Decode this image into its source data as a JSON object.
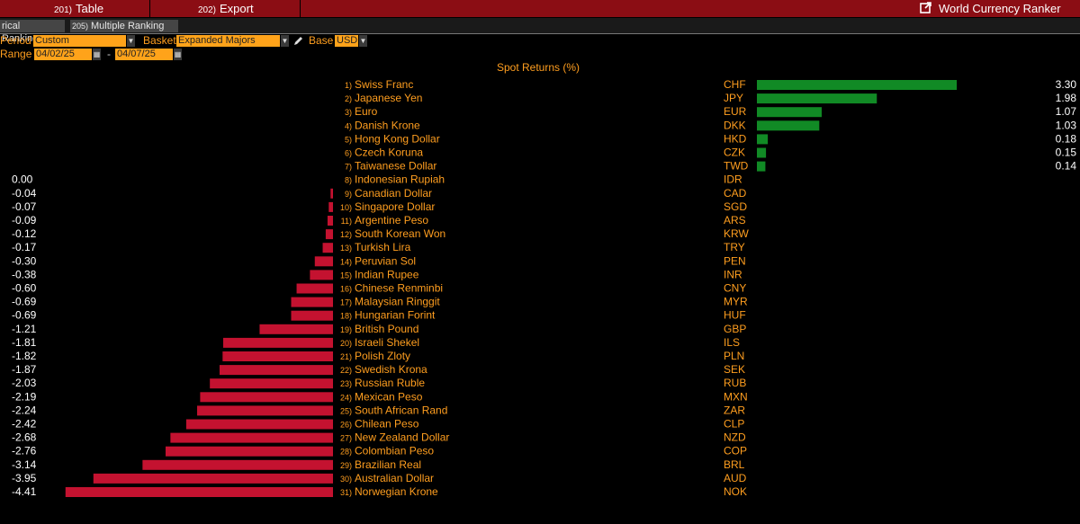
{
  "toolbar": {
    "table_num": "201)",
    "table_label": "Table",
    "export_num": "202)",
    "export_label": "Export",
    "app_title": "World Currency Ranker"
  },
  "tabs": {
    "historical": "rical Ranking",
    "multiple_num": "205)",
    "multiple": "Multiple Ranking"
  },
  "controls": {
    "period_label": "Period",
    "period_value": "Custom",
    "basket_label": "Basket",
    "basket_value": "Expanded Majors",
    "base_label": "Base",
    "base_value": "USD",
    "range_label": "Range",
    "range_start": "04/02/25",
    "range_dash": "-",
    "range_end": "04/07/25"
  },
  "colors": {
    "positive": "#118a25",
    "negative": "#c41230",
    "accent": "#ff9e1f",
    "header": "#8b0d14"
  },
  "icons": {
    "launch": "external-link-icon",
    "edit": "pencil-icon",
    "calendar": "calendar-icon",
    "dropdown": "dropdown-arrow-icon"
  },
  "chart_data": {
    "type": "bar",
    "title": "Spot Returns (%)",
    "rows": [
      {
        "rank": "1)",
        "name": "Swiss Franc",
        "code": "CHF",
        "value": 3.3,
        "label": "3.30"
      },
      {
        "rank": "2)",
        "name": "Japanese Yen",
        "code": "JPY",
        "value": 1.98,
        "label": "1.98"
      },
      {
        "rank": "3)",
        "name": "Euro",
        "code": "EUR",
        "value": 1.07,
        "label": "1.07"
      },
      {
        "rank": "4)",
        "name": "Danish Krone",
        "code": "DKK",
        "value": 1.03,
        "label": "1.03"
      },
      {
        "rank": "5)",
        "name": "Hong Kong Dollar",
        "code": "HKD",
        "value": 0.18,
        "label": "0.18"
      },
      {
        "rank": "6)",
        "name": "Czech Koruna",
        "code": "CZK",
        "value": 0.15,
        "label": "0.15"
      },
      {
        "rank": "7)",
        "name": "Taiwanese Dollar",
        "code": "TWD",
        "value": 0.14,
        "label": "0.14"
      },
      {
        "rank": "8)",
        "name": "Indonesian Rupiah",
        "code": "IDR",
        "value": 0.0,
        "label": "0.00"
      },
      {
        "rank": "9)",
        "name": "Canadian Dollar",
        "code": "CAD",
        "value": -0.04,
        "label": "-0.04"
      },
      {
        "rank": "10)",
        "name": "Singapore Dollar",
        "code": "SGD",
        "value": -0.07,
        "label": "-0.07"
      },
      {
        "rank": "11)",
        "name": "Argentine Peso",
        "code": "ARS",
        "value": -0.09,
        "label": "-0.09"
      },
      {
        "rank": "12)",
        "name": "South Korean Won",
        "code": "KRW",
        "value": -0.12,
        "label": "-0.12"
      },
      {
        "rank": "13)",
        "name": "Turkish Lira",
        "code": "TRY",
        "value": -0.17,
        "label": "-0.17"
      },
      {
        "rank": "14)",
        "name": "Peruvian Sol",
        "code": "PEN",
        "value": -0.3,
        "label": "-0.30"
      },
      {
        "rank": "15)",
        "name": "Indian Rupee",
        "code": "INR",
        "value": -0.38,
        "label": "-0.38"
      },
      {
        "rank": "16)",
        "name": "Chinese Renminbi",
        "code": "CNY",
        "value": -0.6,
        "label": "-0.60"
      },
      {
        "rank": "17)",
        "name": "Malaysian Ringgit",
        "code": "MYR",
        "value": -0.69,
        "label": "-0.69"
      },
      {
        "rank": "18)",
        "name": "Hungarian Forint",
        "code": "HUF",
        "value": -0.69,
        "label": "-0.69"
      },
      {
        "rank": "19)",
        "name": "British Pound",
        "code": "GBP",
        "value": -1.21,
        "label": "-1.21"
      },
      {
        "rank": "20)",
        "name": "Israeli Shekel",
        "code": "ILS",
        "value": -1.81,
        "label": "-1.81"
      },
      {
        "rank": "21)",
        "name": "Polish Zloty",
        "code": "PLN",
        "value": -1.82,
        "label": "-1.82"
      },
      {
        "rank": "22)",
        "name": "Swedish Krona",
        "code": "SEK",
        "value": -1.87,
        "label": "-1.87"
      },
      {
        "rank": "23)",
        "name": "Russian Ruble",
        "code": "RUB",
        "value": -2.03,
        "label": "-2.03"
      },
      {
        "rank": "24)",
        "name": "Mexican Peso",
        "code": "MXN",
        "value": -2.19,
        "label": "-2.19"
      },
      {
        "rank": "25)",
        "name": "South African Rand",
        "code": "ZAR",
        "value": -2.24,
        "label": "-2.24"
      },
      {
        "rank": "26)",
        "name": "Chilean Peso",
        "code": "CLP",
        "value": -2.42,
        "label": "-2.42"
      },
      {
        "rank": "27)",
        "name": "New Zealand Dollar",
        "code": "NZD",
        "value": -2.68,
        "label": "-2.68"
      },
      {
        "rank": "28)",
        "name": "Colombian Peso",
        "code": "COP",
        "value": -2.76,
        "label": "-2.76"
      },
      {
        "rank": "29)",
        "name": "Brazilian Real",
        "code": "BRL",
        "value": -3.14,
        "label": "-3.14"
      },
      {
        "rank": "30)",
        "name": "Australian Dollar",
        "code": "AUD",
        "value": -3.95,
        "label": "-3.95"
      },
      {
        "rank": "31)",
        "name": "Norwegian Krone",
        "code": "NOK",
        "value": -4.41,
        "label": "-4.41"
      }
    ]
  }
}
